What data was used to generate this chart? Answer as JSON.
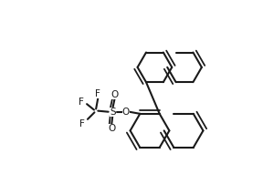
{
  "bg": "#ffffff",
  "line_color": "#1a1a1a",
  "lw": 1.5,
  "figsize": [
    2.88,
    2.14
  ],
  "dpi": 100,
  "font_size": 7.5,
  "labels": {
    "F_top": [
      0.345,
      0.875,
      "F"
    ],
    "F_left": [
      0.165,
      0.775,
      "F"
    ],
    "F_bot": [
      0.175,
      0.655,
      "F"
    ],
    "S": [
      0.39,
      0.72,
      "S"
    ],
    "O_top": [
      0.42,
      0.845,
      "O"
    ],
    "O_bot": [
      0.365,
      0.595,
      "O"
    ],
    "O_link": [
      0.5,
      0.695,
      "O"
    ]
  }
}
